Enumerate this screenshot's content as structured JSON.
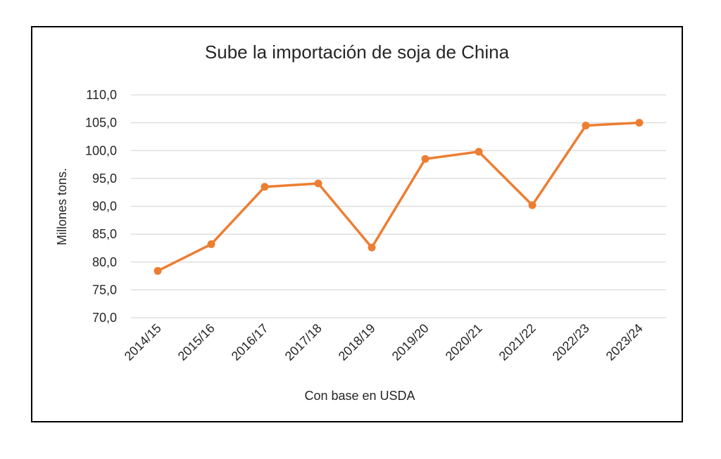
{
  "chart_data": {
    "type": "line",
    "title": "Sube la importación de soja de China",
    "xlabel": "Con base en USDA",
    "ylabel": "Millones tons.",
    "categories": [
      "2014/15",
      "2015/16",
      "2016/17",
      "2017/18",
      "2018/19",
      "2019/20",
      "2020/21",
      "2021/22",
      "2022/23",
      "2023/24"
    ],
    "series": [
      {
        "values": [
          78.4,
          83.2,
          93.5,
          94.1,
          82.6,
          98.5,
          99.8,
          90.2,
          104.5,
          105.0
        ]
      }
    ],
    "ylim": [
      70,
      110
    ],
    "y_ticks": [
      "70,0",
      "75,0",
      "80,0",
      "85,0",
      "90,0",
      "95,0",
      "100,0",
      "105,0",
      "110,0"
    ],
    "grid": true,
    "legend": "none",
    "colors": {
      "line": "#ED7D31",
      "grid": "#D9D9D9",
      "text": "#262626"
    }
  }
}
